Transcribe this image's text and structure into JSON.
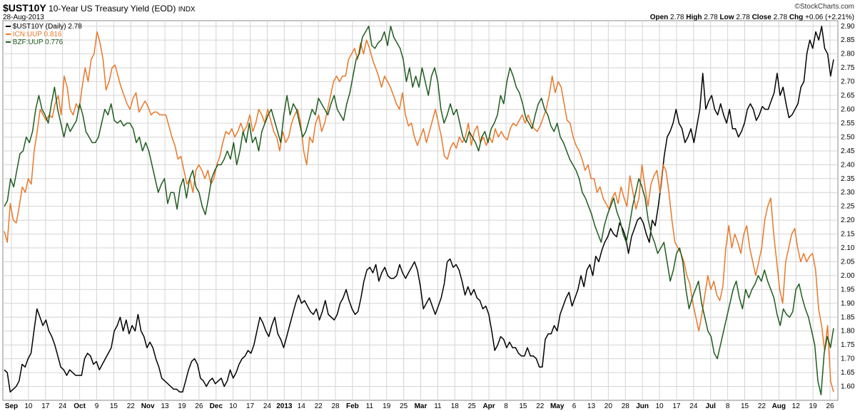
{
  "header": {
    "symbol": "$UST10Y",
    "name": "10-Year US Treasury Yield (EOD)",
    "exchange": "INDX",
    "date": "28-Aug-2013",
    "brand": "©StockCharts.com",
    "ohlc": {
      "open_label": "Open",
      "open": "2.78",
      "high_label": "High",
      "high": "2.78",
      "low_label": "Low",
      "low": "2.78",
      "close_label": "Close",
      "close": "2.78",
      "chg_label": "Chg",
      "chg": "+0.06 (+2.21%)"
    }
  },
  "colors": {
    "ust": "#000000",
    "icn": "#e8782a",
    "bzf": "#1f5c1f",
    "grid": "#d4d4d4"
  },
  "chart_data": {
    "type": "line",
    "ylim": [
      1.55,
      2.92
    ],
    "y_ticks": [
      "1.60",
      "1.65",
      "1.70",
      "1.75",
      "1.80",
      "1.85",
      "1.90",
      "1.95",
      "2.00",
      "2.05",
      "2.10",
      "2.15",
      "2.20",
      "2.25",
      "2.30",
      "2.35",
      "2.40",
      "2.45",
      "2.50",
      "2.55",
      "2.60",
      "2.65",
      "2.70",
      "2.75",
      "2.80",
      "2.85",
      "2.90"
    ],
    "x_ticks": [
      "Sep",
      "10",
      "17",
      "24",
      "Oct",
      "9",
      "15",
      "22",
      "Nov",
      "13",
      "19",
      "26",
      "Dec",
      "10",
      "17",
      "24",
      "2013",
      "14",
      "22",
      "28",
      "Feb",
      "11",
      "19",
      "25",
      "Mar",
      "11",
      "18",
      "25",
      "Apr",
      "8",
      "15",
      "22",
      "May",
      "6",
      "13",
      "20",
      "28",
      "Jun",
      "10",
      "17",
      "24",
      "Jul",
      "8",
      "15",
      "22",
      "Aug",
      "12",
      "19",
      "26"
    ],
    "x_tick_bold": [
      true,
      false,
      false,
      false,
      true,
      false,
      false,
      false,
      true,
      false,
      false,
      false,
      true,
      false,
      false,
      false,
      true,
      false,
      false,
      false,
      true,
      false,
      false,
      false,
      true,
      false,
      false,
      false,
      true,
      false,
      false,
      false,
      true,
      false,
      false,
      false,
      false,
      true,
      false,
      false,
      false,
      true,
      false,
      false,
      false,
      true,
      false,
      false,
      false
    ],
    "legend": [
      {
        "label": "$UST10Y (Daily) 2.78"
      },
      {
        "label": "ICN:UUP 0.816"
      },
      {
        "label": "BZF:UUP 0.776"
      }
    ],
    "series": [
      {
        "name": "$UST10Y (Daily)",
        "color": "#000000",
        "values": [
          1.66,
          1.65,
          1.58,
          1.59,
          1.6,
          1.62,
          1.68,
          1.67,
          1.7,
          1.72,
          1.8,
          1.88,
          1.85,
          1.82,
          1.84,
          1.8,
          1.78,
          1.75,
          1.71,
          1.67,
          1.66,
          1.64,
          1.66,
          1.65,
          1.64,
          1.64,
          1.64,
          1.7,
          1.72,
          1.71,
          1.68,
          1.69,
          1.66,
          1.68,
          1.7,
          1.72,
          1.74,
          1.8,
          1.82,
          1.85,
          1.8,
          1.84,
          1.79,
          1.82,
          1.8,
          1.86,
          1.8,
          1.78,
          1.74,
          1.76,
          1.74,
          1.7,
          1.67,
          1.63,
          1.62,
          1.61,
          1.6,
          1.59,
          1.59,
          1.58,
          1.58,
          1.62,
          1.66,
          1.69,
          1.7,
          1.68,
          1.63,
          1.62,
          1.6,
          1.62,
          1.63,
          1.61,
          1.62,
          1.63,
          1.6,
          1.62,
          1.66,
          1.63,
          1.65,
          1.68,
          1.7,
          1.71,
          1.73,
          1.72,
          1.75,
          1.8,
          1.85,
          1.83,
          1.8,
          1.78,
          1.82,
          1.85,
          1.79,
          1.77,
          1.74,
          1.78,
          1.82,
          1.86,
          1.9,
          1.93,
          1.9,
          1.91,
          1.89,
          1.87,
          1.86,
          1.88,
          1.84,
          1.87,
          1.91,
          1.86,
          1.85,
          1.84,
          1.86,
          1.9,
          1.92,
          1.95,
          1.91,
          1.88,
          1.86,
          1.87,
          1.92,
          1.98,
          2.02,
          2.03,
          2.01,
          2.04,
          1.98,
          2.01,
          2.03,
          2.0,
          1.99,
          1.99,
          2.0,
          2.04,
          2.01,
          1.99,
          2.01,
          2.03,
          2.05,
          2.02,
          1.96,
          1.88,
          1.9,
          1.92,
          1.89,
          1.86,
          1.89,
          1.92,
          1.97,
          2.05,
          2.06,
          2.03,
          2.04,
          2.02,
          1.98,
          1.93,
          1.96,
          1.93,
          1.95,
          1.92,
          1.91,
          1.88,
          1.89,
          1.86,
          1.8,
          1.73,
          1.75,
          1.78,
          1.77,
          1.74,
          1.76,
          1.74,
          1.74,
          1.72,
          1.71,
          1.71,
          1.74,
          1.71,
          1.71,
          1.7,
          1.67,
          1.67,
          1.77,
          1.79,
          1.79,
          1.82,
          1.8,
          1.86,
          1.89,
          1.92,
          1.94,
          1.89,
          1.92,
          1.95,
          2.0,
          1.96,
          2.02,
          2.04,
          2.0,
          2.07,
          2.05,
          2.09,
          2.12,
          2.14,
          2.17,
          2.15,
          2.14,
          2.19,
          2.17,
          2.14,
          2.08,
          2.14,
          2.17,
          2.2,
          2.21,
          2.19,
          2.15,
          2.12,
          2.2,
          2.18,
          2.25,
          2.33,
          2.43,
          2.5,
          2.52,
          2.55,
          2.6,
          2.55,
          2.53,
          2.48,
          2.5,
          2.53,
          2.48,
          2.54,
          2.6,
          2.73,
          2.6,
          2.63,
          2.65,
          2.6,
          2.58,
          2.62,
          2.58,
          2.55,
          2.6,
          2.53,
          2.53,
          2.5,
          2.52,
          2.55,
          2.6,
          2.62,
          2.6,
          2.56,
          2.58,
          2.61,
          2.6,
          2.6,
          2.63,
          2.66,
          2.73,
          2.65,
          2.68,
          2.62,
          2.57,
          2.58,
          2.6,
          2.62,
          2.68,
          2.7,
          2.8,
          2.85,
          2.82,
          2.88,
          2.85,
          2.9,
          2.82,
          2.8,
          2.72,
          2.78
        ]
      },
      {
        "name": "ICN:UUP",
        "color": "#e8782a",
        "values": [
          2.16,
          2.12,
          2.26,
          2.2,
          2.19,
          2.25,
          2.32,
          2.3,
          2.35,
          2.33,
          2.45,
          2.52,
          2.6,
          2.58,
          2.56,
          2.58,
          2.57,
          2.62,
          2.65,
          2.58,
          2.72,
          2.68,
          2.6,
          2.58,
          2.62,
          2.6,
          2.68,
          2.75,
          2.7,
          2.78,
          2.8,
          2.88,
          2.84,
          2.78,
          2.67,
          2.7,
          2.75,
          2.76,
          2.72,
          2.68,
          2.65,
          2.62,
          2.6,
          2.64,
          2.66,
          2.59,
          2.61,
          2.63,
          2.61,
          2.58,
          2.59,
          2.59,
          2.58,
          2.58,
          2.58,
          2.54,
          2.5,
          2.47,
          2.42,
          2.43,
          2.38,
          2.33,
          2.35,
          2.3,
          2.38,
          2.4,
          2.38,
          2.35,
          2.38,
          2.33,
          2.35,
          2.4,
          2.43,
          2.48,
          2.52,
          2.51,
          2.53,
          2.5,
          2.52,
          2.55,
          2.52,
          2.54,
          2.58,
          2.52,
          2.55,
          2.6,
          2.58,
          2.55,
          2.6,
          2.56,
          2.52,
          2.5,
          2.45,
          2.52,
          2.48,
          2.5,
          2.55,
          2.58,
          2.6,
          2.55,
          2.45,
          2.4,
          2.5,
          2.48,
          2.55,
          2.58,
          2.52,
          2.55,
          2.6,
          2.65,
          2.7,
          2.72,
          2.7,
          2.72,
          2.72,
          2.78,
          2.8,
          2.82,
          2.78,
          2.84,
          2.8,
          2.85,
          2.82,
          2.78,
          2.75,
          2.72,
          2.68,
          2.72,
          2.7,
          2.68,
          2.65,
          2.62,
          2.6,
          2.66,
          2.58,
          2.54,
          2.55,
          2.5,
          2.47,
          2.5,
          2.53,
          2.48,
          2.52,
          2.56,
          2.6,
          2.55,
          2.5,
          2.43,
          2.42,
          2.46,
          2.48,
          2.46,
          2.5,
          2.48,
          2.5,
          2.55,
          2.47,
          2.52,
          2.54,
          2.48,
          2.5,
          2.47,
          2.5,
          2.48,
          2.53,
          2.5,
          2.52,
          2.5,
          2.49,
          2.53,
          2.55,
          2.54,
          2.56,
          2.58,
          2.55,
          2.58,
          2.55,
          2.53,
          2.52,
          2.54,
          2.57,
          2.6,
          2.65,
          2.72,
          2.66,
          2.7,
          2.68,
          2.62,
          2.56,
          2.55,
          2.5,
          2.47,
          2.45,
          2.42,
          2.38,
          2.4,
          2.35,
          2.35,
          2.3,
          2.32,
          2.28,
          2.26,
          2.24,
          2.28,
          2.3,
          2.26,
          2.32,
          2.28,
          2.25,
          2.36,
          2.3,
          2.24,
          2.28,
          2.4,
          2.32,
          2.25,
          2.33,
          2.36,
          2.38,
          2.3,
          2.4,
          2.38,
          2.3,
          2.2,
          2.12,
          2.1,
          2.08,
          2.05,
          2.0,
          1.97,
          1.9,
          1.85,
          1.8,
          1.86,
          1.93,
          2.0,
          1.95,
          1.98,
          1.93,
          1.91,
          1.96,
          2.1,
          2.18,
          2.1,
          2.15,
          2.12,
          2.08,
          2.15,
          2.18,
          2.1,
          2.05,
          2.0,
          2.05,
          2.1,
          2.2,
          2.25,
          2.28,
          2.15,
          2.05,
          1.95,
          1.9,
          2.05,
          2.1,
          2.15,
          2.17,
          2.1,
          2.05,
          2.08,
          2.05,
          2.07,
          2.08,
          2.02,
          1.88,
          1.82,
          1.73,
          1.82,
          1.62,
          1.58
        ]
      },
      {
        "name": "BZF:UUP",
        "color": "#1f5c1f",
        "values": [
          2.25,
          2.27,
          2.35,
          2.32,
          2.38,
          2.44,
          2.45,
          2.5,
          2.48,
          2.52,
          2.6,
          2.65,
          2.6,
          2.58,
          2.55,
          2.62,
          2.68,
          2.6,
          2.55,
          2.5,
          2.55,
          2.52,
          2.54,
          2.56,
          2.62,
          2.58,
          2.52,
          2.5,
          2.48,
          2.48,
          2.5,
          2.55,
          2.6,
          2.58,
          2.62,
          2.56,
          2.55,
          2.56,
          2.54,
          2.55,
          2.55,
          2.53,
          2.48,
          2.5,
          2.45,
          2.48,
          2.45,
          2.4,
          2.35,
          2.3,
          2.33,
          2.35,
          2.26,
          2.3,
          2.3,
          2.24,
          2.32,
          2.35,
          2.28,
          2.35,
          2.38,
          2.32,
          2.3,
          2.25,
          2.22,
          2.28,
          2.35,
          2.38,
          2.4,
          2.4,
          2.42,
          2.45,
          2.42,
          2.48,
          2.4,
          2.45,
          2.52,
          2.48,
          2.55,
          2.48,
          2.5,
          2.45,
          2.52,
          2.55,
          2.58,
          2.6,
          2.56,
          2.52,
          2.48,
          2.58,
          2.65,
          2.58,
          2.62,
          2.6,
          2.55,
          2.5,
          2.52,
          2.56,
          2.6,
          2.58,
          2.64,
          2.62,
          2.6,
          2.58,
          2.62,
          2.65,
          2.6,
          2.58,
          2.56,
          2.62,
          2.66,
          2.72,
          2.78,
          2.8,
          2.86,
          2.88,
          2.9,
          2.83,
          2.82,
          2.84,
          2.85,
          2.88,
          2.83,
          2.9,
          2.86,
          2.84,
          2.82,
          2.78,
          2.7,
          2.75,
          2.68,
          2.72,
          2.68,
          2.75,
          2.7,
          2.65,
          2.72,
          2.75,
          2.7,
          2.6,
          2.55,
          2.58,
          2.62,
          2.58,
          2.6,
          2.55,
          2.5,
          2.48,
          2.52,
          2.5,
          2.48,
          2.45,
          2.5,
          2.52,
          2.48,
          2.53,
          2.55,
          2.58,
          2.65,
          2.62,
          2.7,
          2.75,
          2.72,
          2.68,
          2.66,
          2.62,
          2.57,
          2.55,
          2.53,
          2.58,
          2.62,
          2.64,
          2.6,
          2.58,
          2.54,
          2.52,
          2.55,
          2.5,
          2.48,
          2.45,
          2.42,
          2.4,
          2.38,
          2.35,
          2.3,
          2.28,
          2.25,
          2.22,
          2.18,
          2.15,
          2.12,
          2.18,
          2.22,
          2.25,
          2.28,
          2.23,
          2.2,
          2.15,
          2.12,
          2.18,
          2.25,
          2.3,
          2.35,
          2.32,
          2.28,
          2.2,
          2.15,
          2.12,
          2.08,
          2.1,
          2.12,
          2.05,
          1.98,
          2.02,
          2.08,
          2.1,
          2.05,
          1.95,
          1.88,
          1.92,
          1.95,
          1.98,
          1.9,
          1.85,
          1.8,
          1.78,
          1.72,
          1.7,
          1.75,
          1.8,
          1.85,
          1.9,
          1.95,
          1.98,
          1.92,
          1.88,
          1.95,
          1.92,
          1.95,
          1.97,
          2.0,
          1.98,
          2.02,
          1.98,
          1.95,
          1.92,
          1.86,
          1.82,
          1.88,
          1.86,
          1.85,
          1.87,
          1.95,
          1.97,
          1.92,
          1.88,
          1.85,
          1.8,
          1.75,
          1.62,
          1.57,
          1.72,
          1.78,
          1.74,
          1.81
        ]
      }
    ]
  }
}
